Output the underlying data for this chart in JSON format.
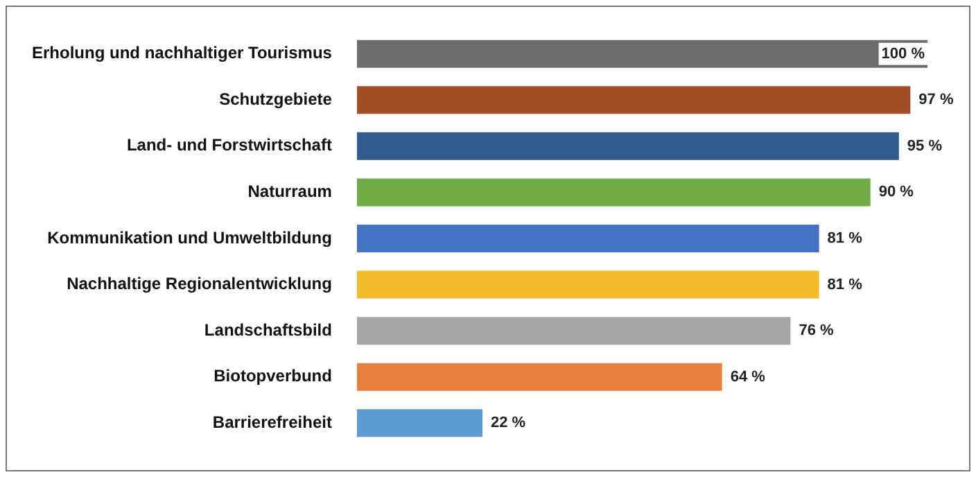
{
  "chart_data": {
    "type": "bar",
    "orientation": "horizontal",
    "categories": [
      "Erholung und nachhaltiger Tourismus",
      "Schutzgebiete",
      "Land- und Forstwirtschaft",
      "Naturraum",
      "Kommunikation und Umweltbildung",
      "Nachhaltige Regionalentwicklung",
      "Landschaftsbild",
      "Biotopverbund",
      "Barrierefreiheit"
    ],
    "values": [
      100,
      97,
      95,
      90,
      81,
      81,
      76,
      64,
      22
    ],
    "colors": [
      "#6b6b6d",
      "#a24f27",
      "#2e5d8e",
      "#71ad47",
      "#4472c4",
      "#f5bd2c",
      "#a6a6a6",
      "#e77f3d",
      "#5d9bd3"
    ],
    "value_labels": [
      "100 %",
      "97 %",
      "95 %",
      "90 %",
      "81 %",
      "81 %",
      "76 %",
      "64 %",
      "22 %"
    ],
    "xlim": [
      0,
      100
    ],
    "tick_labels": "y",
    "legend": false
  }
}
